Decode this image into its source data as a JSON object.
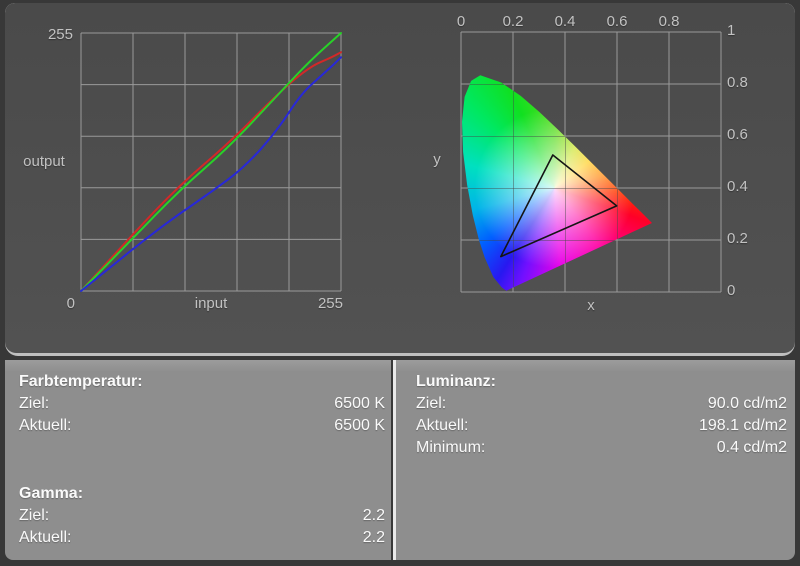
{
  "theme": {
    "page_bg": "#383838",
    "chart_area_bg": "#4e4e4e",
    "grid_line_color": "#9a9a9a",
    "axis_label_color": "#c2c2c2",
    "panel_bg": "#8e8e8e",
    "panel_text_color": "#fafafa",
    "edge_highlight": "#e9e9e9"
  },
  "chart_data": [
    {
      "type": "line",
      "name": "gamma-correction-curves",
      "xlabel": "input",
      "ylabel": "output",
      "xlim": [
        0,
        255
      ],
      "ylim": [
        0,
        255
      ],
      "grid": true,
      "grid_divisions": 5,
      "x_ticks": [
        {
          "value": 0,
          "label": "0"
        },
        {
          "value": 255,
          "label": "255"
        }
      ],
      "y_ticks": [
        {
          "value": 255,
          "label": "255"
        }
      ],
      "series": [
        {
          "name": "red",
          "color": "#d22828",
          "points": [
            [
              0,
              0
            ],
            [
              48,
              53
            ],
            [
              97,
              105
            ],
            [
              146,
              147
            ],
            [
              195,
              197
            ],
            [
              225,
              222
            ],
            [
              244,
              230
            ],
            [
              255,
              236
            ]
          ]
        },
        {
          "name": "green",
          "color": "#28d228",
          "points": [
            [
              0,
              0
            ],
            [
              48,
              49
            ],
            [
              97,
              100
            ],
            [
              146,
              143
            ],
            [
              195,
              196
            ],
            [
              225,
              228
            ],
            [
              255,
              255
            ]
          ]
        },
        {
          "name": "blue",
          "color": "#2828d8",
          "points": [
            [
              0,
              0
            ],
            [
              32,
              26
            ],
            [
              64,
              52
            ],
            [
              96,
              76
            ],
            [
              128,
              98
            ],
            [
              160,
              122
            ],
            [
              192,
              158
            ],
            [
              216,
              195
            ],
            [
              236,
              213
            ],
            [
              248,
              224
            ],
            [
              255,
              231
            ]
          ]
        }
      ]
    },
    {
      "type": "area",
      "name": "cie-1931-chromaticity-diagram",
      "xlabel": "x",
      "ylabel": "y",
      "xlim": [
        0,
        1
      ],
      "ylim": [
        0,
        1
      ],
      "grid": true,
      "grid_divisions": 5,
      "x_ticks": [
        {
          "value": 0,
          "label": "0"
        },
        {
          "value": 0.2,
          "label": "0.2"
        },
        {
          "value": 0.4,
          "label": "0.4"
        },
        {
          "value": 0.6,
          "label": "0.6"
        },
        {
          "value": 0.8,
          "label": "0.8"
        }
      ],
      "y_ticks": [
        {
          "value": 1,
          "label": "1"
        },
        {
          "value": 0.8,
          "label": "0.8"
        },
        {
          "value": 0.6,
          "label": "0.6"
        },
        {
          "value": 0.4,
          "label": "0.4"
        },
        {
          "value": 0.2,
          "label": "0.2"
        },
        {
          "value": 0,
          "label": "0"
        }
      ],
      "spectral_locus": [
        [
          0.1741,
          0.005
        ],
        [
          0.1566,
          0.0177
        ],
        [
          0.1241,
          0.0578
        ],
        [
          0.0913,
          0.1327
        ],
        [
          0.0687,
          0.2007
        ],
        [
          0.0454,
          0.295
        ],
        [
          0.0235,
          0.4127
        ],
        [
          0.0082,
          0.5384
        ],
        [
          0.0039,
          0.6548
        ],
        [
          0.0139,
          0.7502
        ],
        [
          0.0389,
          0.812
        ],
        [
          0.0743,
          0.8338
        ],
        [
          0.1547,
          0.8059
        ],
        [
          0.2296,
          0.7543
        ],
        [
          0.3016,
          0.6923
        ],
        [
          0.3731,
          0.6245
        ],
        [
          0.4441,
          0.5547
        ],
        [
          0.5125,
          0.4866
        ],
        [
          0.5752,
          0.4242
        ],
        [
          0.627,
          0.3725
        ],
        [
          0.6658,
          0.334
        ],
        [
          0.6915,
          0.3083
        ],
        [
          0.7347,
          0.2653
        ]
      ],
      "gamut_triangle": [
        [
          0.353,
          0.527
        ],
        [
          0.599,
          0.331
        ],
        [
          0.153,
          0.136
        ]
      ],
      "gamut_outline_color": "#151515"
    }
  ],
  "panels": {
    "farbtemperatur": {
      "title": "Farbtemperatur:",
      "rows": [
        {
          "label": "Ziel:",
          "value": "6500 K"
        },
        {
          "label": "Aktuell:",
          "value": "6500 K"
        }
      ]
    },
    "gamma": {
      "title": "Gamma:",
      "rows": [
        {
          "label": "Ziel:",
          "value": "2.2"
        },
        {
          "label": "Aktuell:",
          "value": "2.2"
        }
      ]
    },
    "luminanz": {
      "title": "Luminanz:",
      "rows": [
        {
          "label": "Ziel:",
          "value": "90.0 cd/m2"
        },
        {
          "label": "Aktuell:",
          "value": "198.1 cd/m2"
        },
        {
          "label": "Minimum:",
          "value": "0.4 cd/m2"
        }
      ]
    }
  }
}
